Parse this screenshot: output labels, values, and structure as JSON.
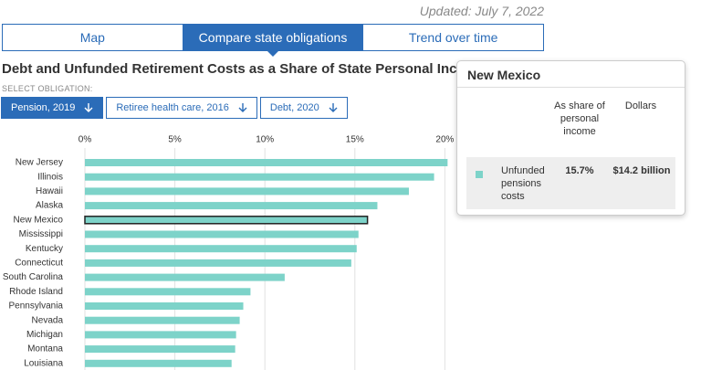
{
  "updated": "Updated: July 7, 2022",
  "tabs": [
    "Map",
    "Compare state obligations",
    "Trend over time"
  ],
  "active_tab": 1,
  "select_label": "SELECT OBLIGATION:",
  "obligations": [
    "Pension, 2019",
    "Retiree health care, 2016",
    "Debt, 2020"
  ],
  "selected_obligation": 0,
  "chart_data": {
    "type": "bar",
    "orientation": "horizontal",
    "title": "Debt and Unfunded Retirement Costs as a Share of State Personal Income",
    "categories": [
      "New Jersey",
      "Illinois",
      "Hawaii",
      "Alaska",
      "New Mexico",
      "Mississippi",
      "Kentucky",
      "Connecticut",
      "South Carolina",
      "Rhode Island",
      "Pennsylvania",
      "Nevada",
      "Michigan",
      "Montana",
      "Louisiana"
    ],
    "values": [
      20.15,
      19.4,
      18.0,
      16.25,
      15.7,
      15.2,
      15.1,
      14.8,
      11.1,
      9.2,
      8.8,
      8.6,
      8.4,
      8.35,
      8.15
    ],
    "color": "#7dd3c9",
    "highlight_index": 4,
    "xlim": [
      0,
      25
    ],
    "xticks": [
      {
        "value": 0,
        "label": "0%"
      },
      {
        "value": 5,
        "label": "5%"
      },
      {
        "value": 10,
        "label": "10%"
      },
      {
        "value": 15,
        "label": "15%"
      },
      {
        "value": 20,
        "label": "20%"
      }
    ],
    "grid": true
  },
  "tooltip": {
    "title": "New Mexico",
    "headers": [
      "As share of personal income",
      "Dollars"
    ],
    "row": {
      "label": "Unfunded pensions costs",
      "values": [
        "15.7%",
        "$14.2 billion"
      ]
    }
  }
}
